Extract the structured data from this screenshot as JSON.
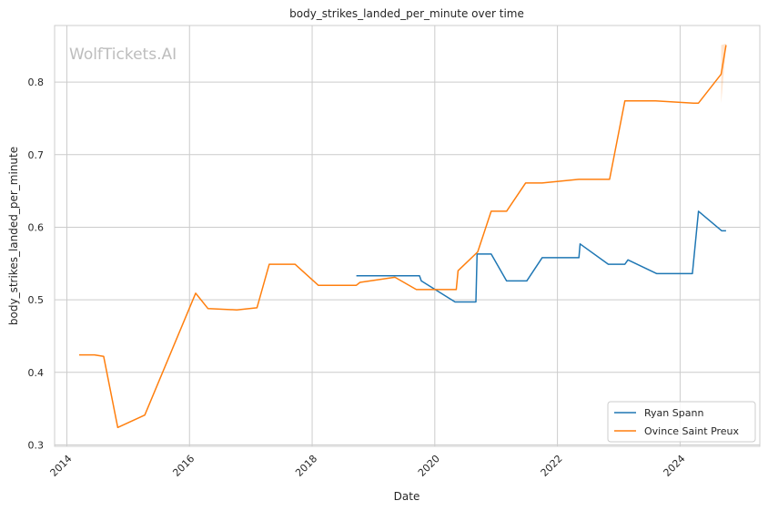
{
  "chart_data": {
    "type": "line",
    "title": "body_strikes_landed_per_minute over time",
    "xlabel": "Date",
    "ylabel": "body_strikes_landed_per_minute",
    "watermark": "WolfTickets.AI",
    "xlim": [
      2013.8,
      2025.3
    ],
    "ylim": [
      0.298,
      0.878
    ],
    "x_ticks": [
      2014,
      2016,
      2018,
      2020,
      2022,
      2024
    ],
    "x_tick_labels": [
      "2014",
      "2016",
      "2018",
      "2020",
      "2022",
      "2024"
    ],
    "y_ticks": [
      0.3,
      0.4,
      0.5,
      0.6,
      0.7,
      0.8
    ],
    "y_tick_labels": [
      "0.3",
      "0.4",
      "0.5",
      "0.6",
      "0.7",
      "0.8"
    ],
    "grid": true,
    "legend_position": "bottom-right",
    "series": [
      {
        "name": "Ryan Spann",
        "color": "#1f77b4",
        "points": [
          [
            2018.72,
            0.533
          ],
          [
            2019.75,
            0.533
          ],
          [
            2019.78,
            0.526
          ],
          [
            2020.33,
            0.497
          ],
          [
            2020.67,
            0.497
          ],
          [
            2020.69,
            0.563
          ],
          [
            2020.92,
            0.563
          ],
          [
            2021.17,
            0.526
          ],
          [
            2021.5,
            0.526
          ],
          [
            2021.75,
            0.558
          ],
          [
            2022.35,
            0.558
          ],
          [
            2022.37,
            0.577
          ],
          [
            2022.83,
            0.549
          ],
          [
            2023.1,
            0.549
          ],
          [
            2023.15,
            0.555
          ],
          [
            2023.62,
            0.536
          ],
          [
            2024.2,
            0.536
          ],
          [
            2024.3,
            0.622
          ],
          [
            2024.68,
            0.595
          ],
          [
            2024.75,
            0.595
          ]
        ]
      },
      {
        "name": "Ovince Saint Preux",
        "color": "#ff7f0e",
        "points": [
          [
            2014.2,
            0.424
          ],
          [
            2014.45,
            0.424
          ],
          [
            2014.6,
            0.422
          ],
          [
            2014.83,
            0.324
          ],
          [
            2015.27,
            0.341
          ],
          [
            2016.1,
            0.509
          ],
          [
            2016.3,
            0.488
          ],
          [
            2016.77,
            0.486
          ],
          [
            2017.1,
            0.489
          ],
          [
            2017.3,
            0.549
          ],
          [
            2017.72,
            0.549
          ],
          [
            2018.1,
            0.52
          ],
          [
            2018.72,
            0.52
          ],
          [
            2018.78,
            0.524
          ],
          [
            2019.35,
            0.531
          ],
          [
            2019.7,
            0.514
          ],
          [
            2020.35,
            0.514
          ],
          [
            2020.38,
            0.54
          ],
          [
            2020.7,
            0.566
          ],
          [
            2020.92,
            0.622
          ],
          [
            2021.17,
            0.622
          ],
          [
            2021.48,
            0.661
          ],
          [
            2021.75,
            0.661
          ],
          [
            2022.35,
            0.666
          ],
          [
            2022.85,
            0.666
          ],
          [
            2023.1,
            0.774
          ],
          [
            2023.6,
            0.774
          ],
          [
            2024.22,
            0.771
          ],
          [
            2024.3,
            0.771
          ],
          [
            2024.67,
            0.811
          ],
          [
            2024.75,
            0.851
          ]
        ]
      }
    ]
  }
}
